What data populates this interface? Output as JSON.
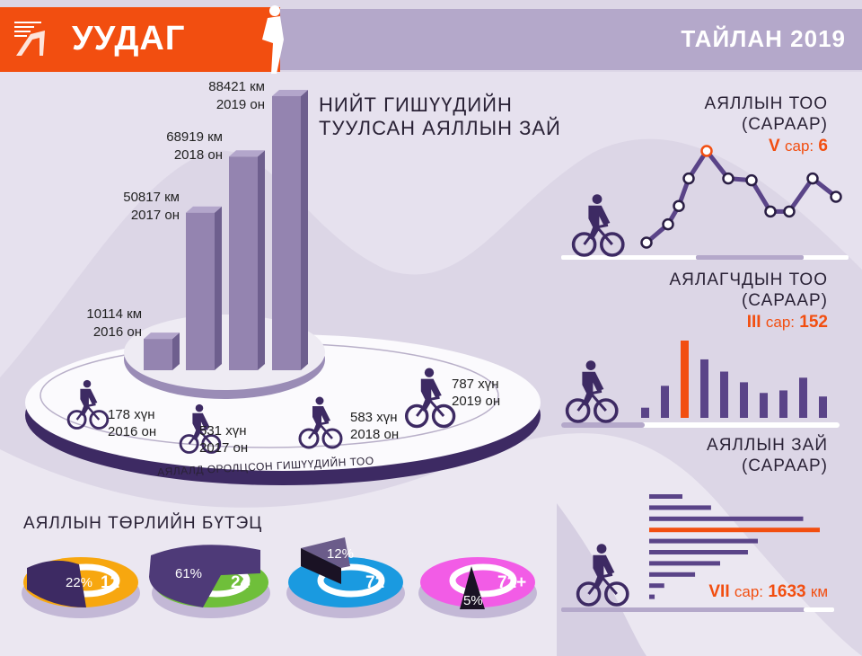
{
  "header": {
    "brand": "УУДАГ",
    "logo_text": "logo",
    "report_title": "ТАЙЛАН 2019"
  },
  "colors": {
    "accent": "#f24e10",
    "purple": "#5a4488",
    "bar3d": "#9484b0",
    "dark": "#3d2a63"
  },
  "distance": {
    "title_line1": "НИЙТ ГИШҮҮДИЙН",
    "title_line2": "ТУУЛСАН АЯЛЛЫН ЗАЙ",
    "items": [
      {
        "value": "10114 км",
        "year": "2016 он"
      },
      {
        "value": "50817 км",
        "year": "2017 он"
      },
      {
        "value": "68919 км",
        "year": "2018 он"
      },
      {
        "value": "88421 км",
        "year": "2019 он"
      }
    ]
  },
  "members": {
    "caption": "АЯЛАЛД ОРОЛЦСОН ГИШҮҮДИЙН ТОО",
    "items": [
      {
        "value": "178 хүн",
        "year": "2016 он"
      },
      {
        "value": "531 хүн",
        "year": "2017 он"
      },
      {
        "value": "583 хүн",
        "year": "2018 он"
      },
      {
        "value": "787 хүн",
        "year": "2019 он"
      }
    ]
  },
  "trips": {
    "title_line1": "АЯЛЛЫН ТОО",
    "title_line2": "(САРААР)",
    "hl_month": "V",
    "hl_unit": "сар:",
    "hl_value": "6"
  },
  "riders": {
    "title_line1": "АЯЛАГЧДЫН ТОО",
    "title_line2": "(САРААР)",
    "hl_month": "III",
    "hl_unit": "сар:",
    "hl_value": "152"
  },
  "tripdist": {
    "title_line1": "АЯЛЛЫН ЗАЙ",
    "title_line2": "(САРААР)",
    "hl_month": "VII",
    "hl_unit": "сар:",
    "hl_value": "1633",
    "hl_suffix": "км"
  },
  "types": {
    "title": "АЯЛЛЫН ТӨРЛИЙН БҮТЭЦ",
    "items": [
      {
        "pct": "22%",
        "icon_label": "12",
        "color": "#f7a70f"
      },
      {
        "pct": "61%",
        "icon_label": "24",
        "color": "#6fbf3a"
      },
      {
        "pct": "12%",
        "icon_label": "72",
        "color": "#1a9ae0"
      },
      {
        "pct": "5%",
        "icon_label": "72+",
        "color": "#f25ce6"
      }
    ]
  },
  "chart_data": [
    {
      "type": "bar",
      "title": "НИЙТ ГИШҮҮДИЙН ТУУЛСАН АЯЛЛЫН ЗАЙ",
      "categories": [
        "2016",
        "2017",
        "2018",
        "2019"
      ],
      "values": [
        10114,
        50817,
        68919,
        88421
      ],
      "unit": "км"
    },
    {
      "type": "bar",
      "title": "АЯЛАЛД ОРОЛЦСОН ГИШҮҮДИЙН ТОО",
      "categories": [
        "2016",
        "2017",
        "2018",
        "2019"
      ],
      "values": [
        178,
        531,
        583,
        787
      ],
      "unit": "хүн"
    },
    {
      "type": "line",
      "title": "АЯЛЛЫН ТОО (САРААР)",
      "values": [
        1,
        2,
        3,
        4.5,
        6,
        4.5,
        4.4,
        2.7,
        2.7,
        4.5,
        3.5
      ],
      "highlight_index": 4,
      "ylim": [
        0,
        6
      ]
    },
    {
      "type": "bar",
      "title": "АЯЛАГЧДЫН ТОО (САРААР)",
      "values": [
        20,
        63,
        152,
        115,
        91,
        70,
        49,
        54,
        79,
        42
      ],
      "highlight_index": 2,
      "ylim": [
        0,
        152
      ]
    },
    {
      "type": "bar",
      "orientation": "horizontal",
      "title": "АЯЛЛЫН ЗАЙ (САРААР)",
      "values": [
        318,
        592,
        1474,
        1633,
        1040,
        945,
        679,
        439,
        144,
        52
      ],
      "highlight_index": 3,
      "xlim": [
        0,
        1633
      ],
      "unit": "км"
    },
    {
      "type": "pie",
      "title": "АЯЛЛЫН ТӨРЛИЙН БҮТЭЦ",
      "labels": [
        "12",
        "24",
        "72",
        "72+"
      ],
      "values": [
        22,
        61,
        12,
        5
      ]
    }
  ]
}
